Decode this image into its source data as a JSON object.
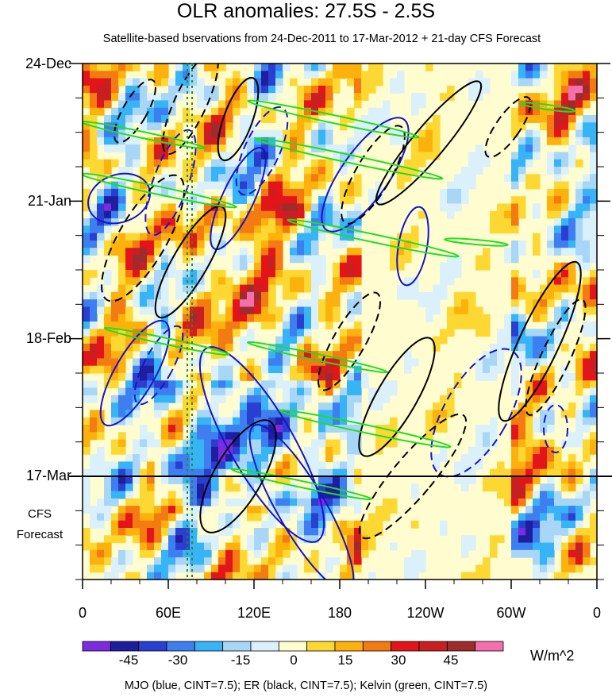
{
  "chart_data": {
    "type": "heatmap",
    "title": "OLR anomalies: 27.5S - 2.5S",
    "subtitle": "Satellite-based bservations from 24-Dec-2011 to 17-Mar-2012 + 21-day CFS Forecast",
    "x_ticks": [
      "0",
      "60E",
      "120E",
      "180",
      "120W",
      "60W",
      "0"
    ],
    "x_range_deg_east": [
      0,
      360
    ],
    "y_ticks": [
      "24-Dec",
      "21-Jan",
      "18-Feb",
      "17-Mar"
    ],
    "y_range_days": [
      0,
      105
    ],
    "y_tick_days": [
      0,
      28,
      56,
      84
    ],
    "forecast_start_day": 84,
    "forecast_label": [
      "CFS",
      "Forecast"
    ],
    "colorbar": {
      "levels": [
        -45,
        -30,
        -15,
        0,
        15,
        30,
        45
      ],
      "level_labels": [
        "-45",
        "-30",
        "-15",
        "0",
        "15",
        "30",
        "45"
      ],
      "colors": [
        "#7d2be2",
        "#1e1e9f",
        "#2a3ed0",
        "#3d7ef0",
        "#37b4f5",
        "#a8d6f6",
        "#daf0fb",
        "#fffcd0",
        "#fed832",
        "#fdb10c",
        "#f47a12",
        "#e3141a",
        "#c81f22",
        "#9e2c2c",
        "#f56fae"
      ],
      "units": "W/m^2"
    },
    "contours_caption": "MJO (blue, CINT=7.5); ER (black, CINT=7.5); Kelvin (green, CINT=7.5)",
    "reference_line_lon": 75
  }
}
